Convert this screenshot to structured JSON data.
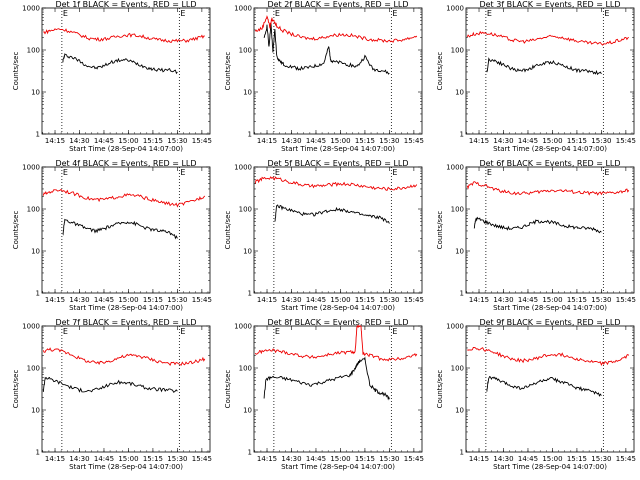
{
  "colors": {
    "events": "#000000",
    "lld": "#ee0000",
    "axes": "#000000"
  },
  "shared": {
    "xlabel": "Start Time (28-Sep-04 14:07:00)",
    "ylabel": "Counts/sec",
    "xticks": [
      "14:15",
      "14:30",
      "14:45",
      "15:00",
      "15:15",
      "15:30",
      "15:45"
    ],
    "yticks": [
      "1",
      "10",
      "100",
      "1000"
    ],
    "marker_label": "E"
  },
  "chart_data": [
    {
      "type": "line",
      "title": "Det 1f BLACK = Events, RED = LLD",
      "xlim": [
        14.117,
        15.833
      ],
      "ylim": [
        1,
        1000
      ],
      "yscale": "log",
      "grid": false,
      "markers": [
        14.32,
        15.52
      ],
      "series": [
        {
          "name": "Events",
          "color": "black",
          "x": [
            14.33,
            14.35,
            14.42,
            14.5,
            14.58,
            14.67,
            14.75,
            14.83,
            14.92,
            15.0,
            15.08,
            15.17,
            15.25,
            15.33,
            15.42,
            15.5
          ],
          "y": [
            55,
            75,
            68,
            55,
            42,
            37,
            42,
            52,
            58,
            57,
            48,
            40,
            35,
            33,
            34,
            30
          ]
        },
        {
          "name": "LLD",
          "color": "red",
          "x": [
            14.13,
            14.2,
            14.3,
            14.4,
            14.5,
            14.6,
            14.7,
            14.8,
            14.9,
            15.0,
            15.1,
            15.2,
            15.3,
            15.4,
            15.5,
            15.6,
            15.7,
            15.78
          ],
          "y": [
            260,
            290,
            320,
            280,
            230,
            190,
            180,
            190,
            215,
            230,
            220,
            195,
            175,
            168,
            165,
            168,
            190,
            215
          ]
        }
      ]
    },
    {
      "type": "line",
      "title": "Det 2f BLACK = Events, RED = LLD",
      "xlim": [
        14.117,
        15.833
      ],
      "ylim": [
        1,
        1000
      ],
      "yscale": "log",
      "grid": false,
      "markers": [
        14.32,
        15.52
      ],
      "series": [
        {
          "name": "Events",
          "color": "black",
          "x": [
            14.22,
            14.25,
            14.27,
            14.29,
            14.31,
            14.33,
            14.35,
            14.38,
            14.42,
            14.5,
            14.58,
            14.67,
            14.75,
            14.83,
            14.88,
            14.9,
            14.92,
            15.0,
            15.08,
            15.17,
            15.25,
            15.33,
            15.42,
            15.5
          ],
          "y": [
            180,
            380,
            120,
            420,
            90,
            300,
            70,
            55,
            45,
            40,
            36,
            38,
            42,
            48,
            120,
            60,
            52,
            50,
            45,
            40,
            70,
            35,
            33,
            28
          ]
        },
        {
          "name": "LLD",
          "color": "red",
          "x": [
            14.13,
            14.2,
            14.25,
            14.28,
            14.3,
            14.35,
            14.4,
            14.5,
            14.6,
            14.7,
            14.8,
            14.9,
            15.0,
            15.1,
            15.2,
            15.3,
            15.4,
            15.5,
            15.6,
            15.7,
            15.78
          ],
          "y": [
            280,
            330,
            650,
            350,
            560,
            380,
            300,
            240,
            200,
            185,
            195,
            220,
            235,
            225,
            200,
            180,
            170,
            165,
            170,
            190,
            215
          ]
        }
      ]
    },
    {
      "type": "line",
      "title": "Det 3f BLACK = Events, RED = LLD",
      "xlim": [
        14.117,
        15.833
      ],
      "ylim": [
        1,
        1000
      ],
      "yscale": "log",
      "grid": false,
      "markers": [
        14.32,
        15.52
      ],
      "series": [
        {
          "name": "Events",
          "color": "black",
          "x": [
            14.33,
            14.35,
            14.42,
            14.5,
            14.58,
            14.67,
            14.75,
            14.83,
            14.92,
            15.0,
            15.08,
            15.17,
            15.25,
            15.33,
            15.42,
            15.5
          ],
          "y": [
            28,
            60,
            55,
            45,
            36,
            32,
            35,
            42,
            48,
            52,
            45,
            38,
            33,
            32,
            30,
            27
          ]
        },
        {
          "name": "LLD",
          "color": "red",
          "x": [
            14.13,
            14.2,
            14.3,
            14.4,
            14.5,
            14.6,
            14.7,
            14.8,
            14.9,
            15.0,
            15.1,
            15.2,
            15.3,
            15.4,
            15.5,
            15.6,
            15.7,
            15.78
          ],
          "y": [
            210,
            240,
            260,
            235,
            200,
            170,
            160,
            170,
            195,
            210,
            200,
            175,
            155,
            145,
            140,
            150,
            175,
            200
          ]
        }
      ]
    },
    {
      "type": "line",
      "title": "Det 4f BLACK = Events, RED = LLD",
      "xlim": [
        14.117,
        15.833
      ],
      "ylim": [
        1,
        1000
      ],
      "yscale": "log",
      "grid": false,
      "markers": [
        14.32,
        15.52
      ],
      "series": [
        {
          "name": "Events",
          "color": "black",
          "x": [
            14.33,
            14.35,
            14.42,
            14.5,
            14.58,
            14.67,
            14.75,
            14.83,
            14.92,
            15.0,
            15.08,
            15.17,
            15.25,
            15.33,
            15.42,
            15.5
          ],
          "y": [
            25,
            55,
            48,
            40,
            34,
            30,
            34,
            40,
            46,
            50,
            44,
            36,
            32,
            30,
            28,
            20
          ]
        },
        {
          "name": "LLD",
          "color": "red",
          "x": [
            14.13,
            14.2,
            14.3,
            14.4,
            14.5,
            14.6,
            14.7,
            14.8,
            14.9,
            15.0,
            15.1,
            15.2,
            15.3,
            15.4,
            15.5,
            15.6,
            15.7,
            15.78
          ],
          "y": [
            220,
            260,
            290,
            250,
            210,
            175,
            165,
            175,
            200,
            215,
            205,
            175,
            150,
            135,
            125,
            140,
            170,
            205
          ]
        }
      ]
    },
    {
      "type": "line",
      "title": "Det 5f BLACK = Events, RED = LLD",
      "xlim": [
        14.117,
        15.833
      ],
      "ylim": [
        1,
        1000
      ],
      "yscale": "log",
      "grid": false,
      "markers": [
        14.32,
        15.52
      ],
      "series": [
        {
          "name": "Events",
          "color": "black",
          "x": [
            14.33,
            14.35,
            14.42,
            14.5,
            14.58,
            14.67,
            14.75,
            14.83,
            14.92,
            15.0,
            15.08,
            15.17,
            15.25,
            15.33,
            15.42,
            15.5
          ],
          "y": [
            50,
            120,
            105,
            92,
            80,
            72,
            76,
            86,
            95,
            98,
            90,
            78,
            70,
            66,
            62,
            45
          ]
        },
        {
          "name": "LLD",
          "color": "red",
          "x": [
            14.13,
            14.2,
            14.3,
            14.4,
            14.5,
            14.6,
            14.7,
            14.8,
            14.9,
            15.0,
            15.1,
            15.2,
            15.3,
            15.4,
            15.5,
            15.6,
            15.7,
            15.78
          ],
          "y": [
            440,
            520,
            560,
            500,
            430,
            380,
            350,
            355,
            380,
            400,
            390,
            360,
            330,
            310,
            300,
            310,
            340,
            380
          ]
        }
      ]
    },
    {
      "type": "line",
      "title": "Det 6f BLACK = Events, RED = LLD",
      "xlim": [
        14.117,
        15.833
      ],
      "ylim": [
        1,
        1000
      ],
      "yscale": "log",
      "grid": false,
      "markers": [
        14.32,
        15.52
      ],
      "series": [
        {
          "name": "Events",
          "color": "black",
          "x": [
            14.2,
            14.22,
            14.27,
            14.33,
            14.42,
            14.5,
            14.58,
            14.67,
            14.75,
            14.83,
            14.92,
            15.0,
            15.08,
            15.17,
            15.25,
            15.33,
            15.42,
            15.5
          ],
          "y": [
            35,
            60,
            55,
            48,
            40,
            36,
            34,
            36,
            42,
            50,
            52,
            48,
            42,
            38,
            36,
            35,
            34,
            28
          ]
        },
        {
          "name": "LLD",
          "color": "red",
          "x": [
            14.13,
            14.2,
            14.3,
            14.4,
            14.5,
            14.6,
            14.7,
            14.8,
            14.9,
            15.0,
            15.1,
            15.2,
            15.3,
            15.4,
            15.5,
            15.6,
            15.7,
            15.78
          ],
          "y": [
            330,
            420,
            370,
            300,
            260,
            240,
            235,
            245,
            265,
            280,
            275,
            260,
            245,
            240,
            235,
            240,
            255,
            280
          ]
        }
      ]
    },
    {
      "type": "line",
      "title": "Det 7f BLACK = Events, RED = LLD",
      "xlim": [
        14.117,
        15.833
      ],
      "ylim": [
        1,
        1000
      ],
      "yscale": "log",
      "grid": false,
      "markers": [
        14.32,
        15.52
      ],
      "series": [
        {
          "name": "Events",
          "color": "black",
          "x": [
            14.13,
            14.15,
            14.2,
            14.3,
            14.4,
            14.5,
            14.6,
            14.7,
            14.8,
            14.9,
            15.0,
            15.1,
            15.2,
            15.3,
            15.4,
            15.5
          ],
          "y": [
            28,
            60,
            55,
            45,
            36,
            30,
            28,
            32,
            40,
            46,
            44,
            38,
            33,
            31,
            30,
            28
          ]
        },
        {
          "name": "LLD",
          "color": "red",
          "x": [
            14.13,
            14.2,
            14.3,
            14.4,
            14.5,
            14.6,
            14.7,
            14.8,
            14.9,
            15.0,
            15.1,
            15.2,
            15.3,
            15.4,
            15.5,
            15.6,
            15.7,
            15.78
          ],
          "y": [
            250,
            280,
            260,
            220,
            170,
            140,
            130,
            145,
            175,
            200,
            195,
            170,
            145,
            130,
            125,
            130,
            145,
            165
          ]
        }
      ]
    },
    {
      "type": "line",
      "title": "Det 8f BLACK = Events, RED = LLD",
      "xlim": [
        14.117,
        15.833
      ],
      "ylim": [
        1,
        1000
      ],
      "yscale": "log",
      "grid": false,
      "markers": [
        14.32,
        15.52
      ],
      "series": [
        {
          "name": "Events",
          "color": "black",
          "x": [
            14.22,
            14.24,
            14.3,
            14.4,
            14.5,
            14.6,
            14.7,
            14.8,
            14.9,
            15.0,
            15.1,
            15.15,
            15.18,
            15.2,
            15.25,
            15.3,
            15.35,
            15.4,
            15.45,
            15.5
          ],
          "y": [
            20,
            55,
            60,
            58,
            52,
            45,
            40,
            45,
            52,
            60,
            68,
            100,
            130,
            150,
            160,
            40,
            30,
            26,
            24,
            18
          ]
        },
        {
          "name": "LLD",
          "color": "red",
          "x": [
            14.13,
            14.2,
            14.3,
            14.4,
            14.5,
            14.6,
            14.7,
            14.8,
            14.9,
            15.0,
            15.1,
            15.15,
            15.17,
            15.19,
            15.21,
            15.23,
            15.3,
            15.4,
            15.5,
            15.6,
            15.7,
            15.78
          ],
          "y": [
            220,
            250,
            265,
            245,
            220,
            195,
            180,
            190,
            215,
            230,
            240,
            245,
            1000,
            1000,
            1000,
            220,
            200,
            170,
            160,
            165,
            185,
            215
          ]
        }
      ]
    },
    {
      "type": "line",
      "title": "Det 9f BLACK = Events, RED = LLD",
      "xlim": [
        14.117,
        15.833
      ],
      "ylim": [
        1,
        1000
      ],
      "yscale": "log",
      "grid": false,
      "markers": [
        14.32,
        15.52
      ],
      "series": [
        {
          "name": "Events",
          "color": "black",
          "x": [
            14.33,
            14.35,
            14.42,
            14.5,
            14.58,
            14.67,
            14.75,
            14.83,
            14.92,
            15.0,
            15.08,
            15.17,
            15.25,
            15.33,
            15.42,
            15.5
          ],
          "y": [
            30,
            60,
            55,
            45,
            38,
            33,
            36,
            44,
            52,
            55,
            48,
            40,
            34,
            30,
            27,
            22
          ]
        },
        {
          "name": "LLD",
          "color": "red",
          "x": [
            14.13,
            14.2,
            14.3,
            14.4,
            14.5,
            14.6,
            14.7,
            14.8,
            14.9,
            15.0,
            15.1,
            15.2,
            15.3,
            15.4,
            15.5,
            15.6,
            15.7,
            15.78
          ],
          "y": [
            270,
            300,
            280,
            240,
            190,
            160,
            150,
            160,
            190,
            210,
            205,
            180,
            155,
            140,
            130,
            135,
            160,
            200
          ]
        }
      ]
    }
  ]
}
